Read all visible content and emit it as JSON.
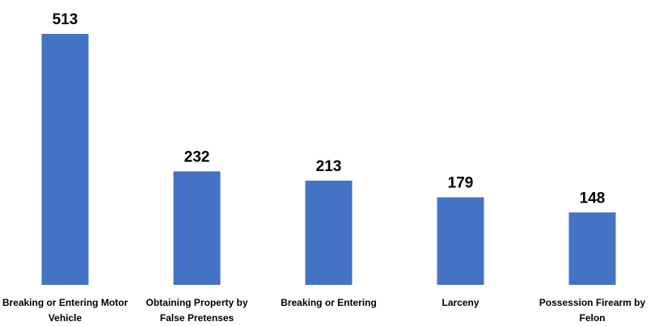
{
  "chart_data": {
    "type": "bar",
    "categories": [
      "Breaking or Entering Motor Vehicle",
      "Obtaining Property by False Pretenses",
      "Breaking or Entering",
      "Larceny",
      "Possession Firearm by Felon"
    ],
    "values": [
      513,
      232,
      213,
      179,
      148
    ],
    "color": "#4472c4"
  }
}
